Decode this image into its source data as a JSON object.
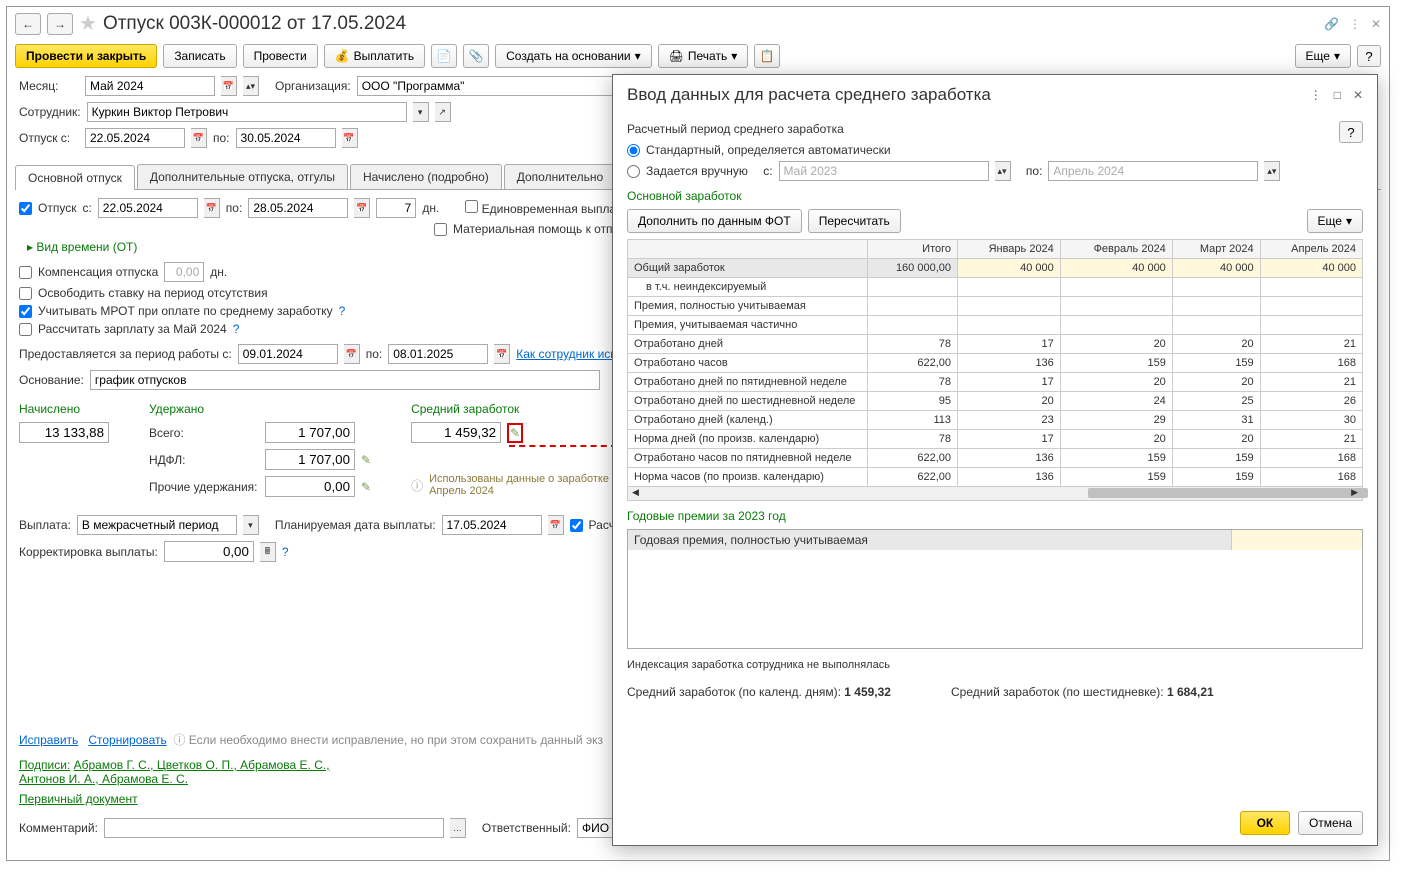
{
  "title": "Отпуск 003К-000012 от 17.05.2024",
  "toolbar": {
    "post_close": "Провести и закрыть",
    "save": "Записать",
    "post": "Провести",
    "pay": "Выплатить",
    "create_based": "Создать на основании",
    "print": "Печать",
    "more": "Еще",
    "help": "?"
  },
  "form": {
    "month_lbl": "Месяц:",
    "month": "Май 2024",
    "org_lbl": "Организация:",
    "org": "ООО \"Программа\"",
    "employee_lbl": "Сотрудник:",
    "employee": "Куркин Виктор Петрович",
    "vac_from_lbl": "Отпуск с:",
    "vac_from": "22.05.2024",
    "to_lbl": "по:",
    "vac_to": "30.05.2024"
  },
  "tabs": {
    "main": "Основной отпуск",
    "additional": "Дополнительные отпуска, отгулы",
    "accrued": "Начислено (подробно)",
    "extra": "Дополнительно"
  },
  "main_tab": {
    "vac_cb": "Отпуск",
    "from_lbl": "с:",
    "from": "22.05.2024",
    "to_lbl": "по:",
    "to": "28.05.2024",
    "days": "7",
    "days_lbl": "дн.",
    "lump_cb": "Единовременная выплата к от",
    "aid_cb": "Материальная помощь к отпус",
    "timetype": "Вид времени (ОТ)",
    "compensation_lbl": "Компенсация отпуска",
    "comp_val": "0,00",
    "comp_unit": "дн.",
    "release_cb": "Освободить ставку на период отсутствия",
    "mrot_cb": "Учитывать МРОТ при оплате по среднему заработку",
    "calc_salary_cb": "Рассчитать зарплату за Май 2024",
    "period_lbl": "Предоставляется за период работы с:",
    "period_from": "09.01.2024",
    "period_to_lbl": "по:",
    "period_to": "08.01.2025",
    "how_link": "Как сотрудник испол",
    "basis_lbl": "Основание:",
    "basis": "график отпусков"
  },
  "calc": {
    "accrued_hdr": "Начислено",
    "accrued_val": "13 133,88",
    "withheld_hdr": "Удержано",
    "total_lbl": "Всего:",
    "total_val": "1 707,00",
    "ndfl_lbl": "НДФЛ:",
    "ndfl_val": "1 707,00",
    "other_lbl": "Прочие удержания:",
    "other_val": "0,00",
    "avg_hdr": "Средний заработок",
    "avg_val": "1 459,32",
    "info_text1": "Использованы данные о заработке",
    "info_text2": "Апрель 2024"
  },
  "payment": {
    "pay_lbl": "Выплата:",
    "pay_val": "В межрасчетный период",
    "plan_lbl": "Планируемая дата выплаты:",
    "plan_date": "17.05.2024",
    "calc_cb": "Расчет",
    "corr_lbl": "Корректировка выплаты:",
    "corr_val": "0,00"
  },
  "bottom": {
    "fix": "Исправить",
    "reverse": "Сторнировать",
    "hint": "Если необходимо внести исправление, но при этом сохранить данный экз",
    "sig_lbl": "Подписи:",
    "sig1": "Абрамов Г. С., Цветков О. П., Абрамова Е. С.,",
    "sig2": "Антонов И. А., Абрамова Е. С.",
    "primary": "Первичный документ",
    "comment_lbl": "Комментарий:",
    "resp_lbl": "Ответственный:",
    "resp_val": "ФИО пол"
  },
  "modal": {
    "title": "Ввод данных для расчета среднего заработка",
    "sub": "Расчетный период среднего заработка",
    "radio_std": "Стандартный, определяется автоматически",
    "radio_manual": "Задается вручную",
    "manual_from_lbl": "с:",
    "manual_from": "Май 2023",
    "manual_to_lbl": "по:",
    "manual_to": "Апрель 2024",
    "main_earn_hdr": "Основной заработок",
    "fill_btn": "Дополнить по данным ФОТ",
    "recalc_btn": "Пересчитать",
    "more_btn": "Еще",
    "table": {
      "cols": [
        "",
        "Итого",
        "Январь 2024",
        "Февраль 2024",
        "Март 2024",
        "Апрель 2024"
      ],
      "rows": [
        {
          "label": "Общий заработок",
          "vals": [
            "160 000,00",
            "40 000",
            "40 000",
            "40 000",
            "40 000"
          ],
          "hdr": true,
          "hl": true
        },
        {
          "label": "в т.ч. неиндексируемый",
          "vals": [
            "",
            "",
            "",
            "",
            ""
          ],
          "indent": true
        },
        {
          "label": "Премия, полностью учитываемая",
          "vals": [
            "",
            "",
            "",
            "",
            ""
          ]
        },
        {
          "label": "Премия, учитываемая частично",
          "vals": [
            "",
            "",
            "",
            "",
            ""
          ]
        },
        {
          "label": "Отработано дней",
          "vals": [
            "78",
            "17",
            "20",
            "20",
            "21"
          ]
        },
        {
          "label": "Отработано часов",
          "vals": [
            "622,00",
            "136",
            "159",
            "159",
            "168"
          ]
        },
        {
          "label": "Отработано дней по пятидневной неделе",
          "vals": [
            "78",
            "17",
            "20",
            "20",
            "21"
          ]
        },
        {
          "label": "Отработано дней по шестидневной неделе",
          "vals": [
            "95",
            "20",
            "24",
            "25",
            "26"
          ]
        },
        {
          "label": "Отработано дней (календ.)",
          "vals": [
            "113",
            "23",
            "29",
            "31",
            "30"
          ]
        },
        {
          "label": "Норма дней (по произв. календарю)",
          "vals": [
            "78",
            "17",
            "20",
            "20",
            "21"
          ]
        },
        {
          "label": "Отработано часов по пятидневной неделе",
          "vals": [
            "622,00",
            "136",
            "159",
            "159",
            "168"
          ]
        },
        {
          "label": "Норма часов (по произв. календарю)",
          "vals": [
            "622,00",
            "136",
            "159",
            "159",
            "168"
          ]
        }
      ]
    },
    "annual_hdr": "Годовые премии за 2023 год",
    "annual_row": "Годовая премия, полностью учитываемая",
    "idx_text": "Индексация заработка сотрудника не выполнялась",
    "avg1_lbl": "Средний заработок (по календ. дням):",
    "avg1_val": "1 459,32",
    "avg2_lbl": "Средний заработок (по шестидневке):",
    "avg2_val": "1 684,21",
    "ok": "ОК",
    "cancel": "Отмена"
  }
}
